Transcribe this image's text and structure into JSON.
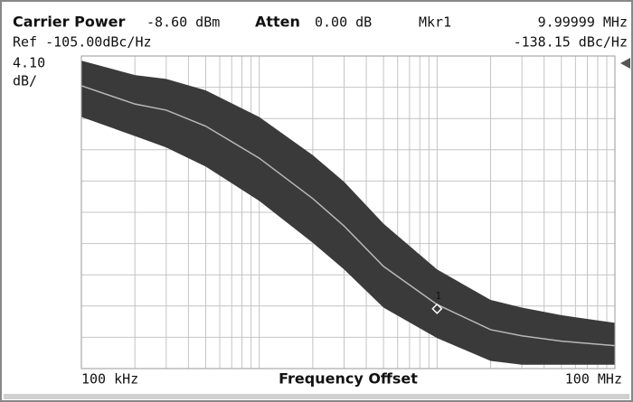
{
  "chart_data": {
    "type": "line",
    "header": {
      "carrier_label": "Carrier Power",
      "carrier_value": "-8.60 dBm",
      "atten_label": "Atten",
      "atten_value": "0.00 dB",
      "marker_label": "Mkr1",
      "marker_freq": "9.99999 MHz",
      "ref_text": "Ref -105.00dBc/Hz",
      "marker_level": "-138.15 dBc/Hz",
      "scale_value": "4.10",
      "scale_unit": "dB/"
    },
    "x_start_label": "100 kHz",
    "x_label": "Frequency Offset",
    "x_stop_label": "100 MHz",
    "xscale": "log",
    "xlim": [
      100000,
      100000000
    ],
    "ylim": [
      -146,
      -105
    ],
    "ygrid": [
      -105,
      -109.1,
      -113.2,
      -117.3,
      -121.4,
      -125.5,
      -129.6,
      -133.7,
      -137.8,
      -141.9,
      -146
    ],
    "xgrid": [
      100000,
      200000,
      300000,
      400000,
      500000,
      600000,
      700000,
      800000,
      900000,
      1000000,
      2000000,
      3000000,
      4000000,
      5000000,
      6000000,
      7000000,
      8000000,
      9000000,
      10000000,
      20000000,
      30000000,
      40000000,
      50000000,
      60000000,
      70000000,
      80000000,
      90000000,
      100000000
    ],
    "x": [
      100000,
      200000,
      300000,
      500000,
      1000000,
      2000000,
      3000000,
      5000000,
      10000000,
      20000000,
      30000000,
      50000000,
      100000000
    ],
    "trace": {
      "color": "#b8b8b8",
      "values": [
        -108.9,
        -111.3,
        -112.1,
        -114.2,
        -118.4,
        -123.7,
        -127.3,
        -132.6,
        -137.6,
        -140.9,
        -141.7,
        -142.4,
        -143.0
      ]
    },
    "noise_upper": {
      "color": "#3a3a3a",
      "values": [
        -105.6,
        -107.5,
        -108,
        -109.5,
        -113,
        -118,
        -121.5,
        -127,
        -133,
        -137,
        -138,
        -139,
        -140
      ]
    },
    "noise_lower": {
      "values": [
        -113,
        -115.5,
        -117,
        -119.5,
        -124,
        -129.5,
        -133,
        -138,
        -142,
        -145,
        -145.5,
        -145.5,
        -145.5
      ]
    },
    "marker": {
      "label": "1",
      "x": 9999990,
      "y": -138.15
    }
  }
}
